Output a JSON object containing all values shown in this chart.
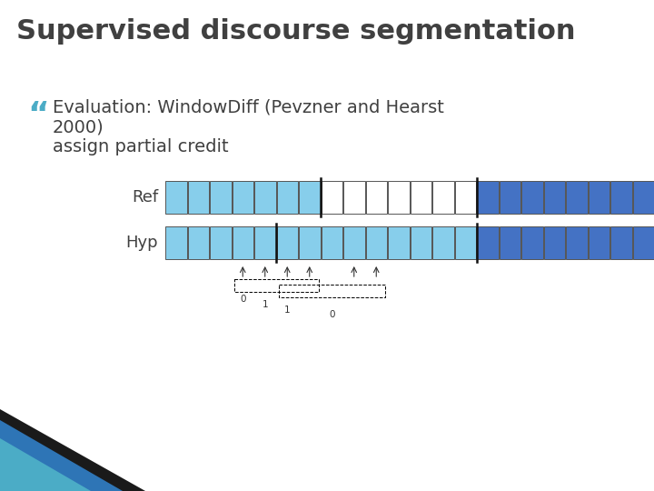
{
  "title": "Supervised discourse segmentation",
  "title_color": "#404040",
  "title_fontsize": 22,
  "bg_color": "#ffffff",
  "bullet_char": "“",
  "bullet_color": "#4bacc6",
  "text_line1": "Evaluation: WindowDiff (Pevzner and Hearst",
  "text_line2": "2000)",
  "text_line3": "assign partial credit",
  "text_color": "#404040",
  "text_fontsize": 14,
  "label_fontsize": 13,
  "ref_label": "Ref",
  "hyp_label": "Hyp",
  "num_cells": 22,
  "ref_colors": [
    "#87ceeb",
    "#87ceeb",
    "#87ceeb",
    "#87ceeb",
    "#87ceeb",
    "#87ceeb",
    "#87ceeb",
    "#ffffff",
    "#ffffff",
    "#ffffff",
    "#ffffff",
    "#ffffff",
    "#ffffff",
    "#ffffff",
    "#4472c4",
    "#4472c4",
    "#4472c4",
    "#4472c4",
    "#4472c4",
    "#4472c4",
    "#4472c4",
    "#4472c4"
  ],
  "hyp_colors": [
    "#87ceeb",
    "#87ceeb",
    "#87ceeb",
    "#87ceeb",
    "#87ceeb",
    "#87ceeb",
    "#87ceeb",
    "#87ceeb",
    "#87ceeb",
    "#87ceeb",
    "#87ceeb",
    "#87ceeb",
    "#87ceeb",
    "#87ceeb",
    "#4472c4",
    "#4472c4",
    "#4472c4",
    "#4472c4",
    "#4472c4",
    "#4472c4",
    "#4472c4",
    "#4472c4"
  ],
  "ref_boundary_after": [
    6,
    13
  ],
  "hyp_boundary_after": [
    4,
    13
  ],
  "corner_dark": "#1f4e79",
  "corner_mid": "#2e75b6",
  "corner_light": "#4bacc6"
}
